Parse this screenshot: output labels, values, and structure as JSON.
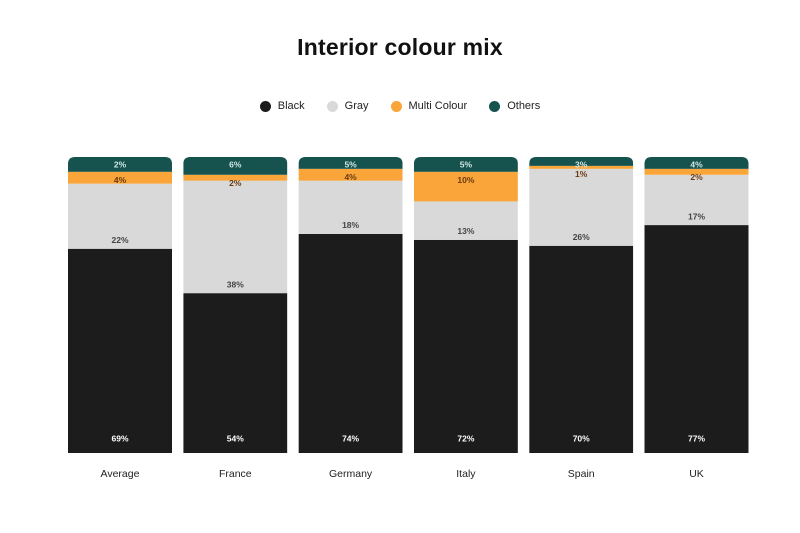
{
  "chart_data": {
    "type": "bar",
    "stacked": true,
    "title": "Interior colour mix",
    "categories": [
      "Average",
      "France",
      "Germany",
      "Italy",
      "Spain",
      "UK"
    ],
    "series": [
      {
        "name": "Black",
        "color": "#1c1c1c",
        "label_color": "#ffffff",
        "values": [
          69,
          54,
          74,
          72,
          70,
          77
        ]
      },
      {
        "name": "Gray",
        "color": "#d9d9d9",
        "label_color": "#444444",
        "values": [
          22,
          38,
          18,
          13,
          26,
          17
        ]
      },
      {
        "name": "Multi Colour",
        "color": "#f9a53a",
        "label_color": "#6b3a10",
        "values": [
          4,
          2,
          4,
          10,
          1,
          2
        ]
      },
      {
        "name": "Others",
        "color": "#16524e",
        "label_color": "#cfe8e4",
        "values": [
          2,
          6,
          5,
          5,
          3,
          4
        ]
      }
    ],
    "value_suffix": "%",
    "ylim": [
      0,
      100
    ],
    "grid": false,
    "legend_position": "top"
  }
}
